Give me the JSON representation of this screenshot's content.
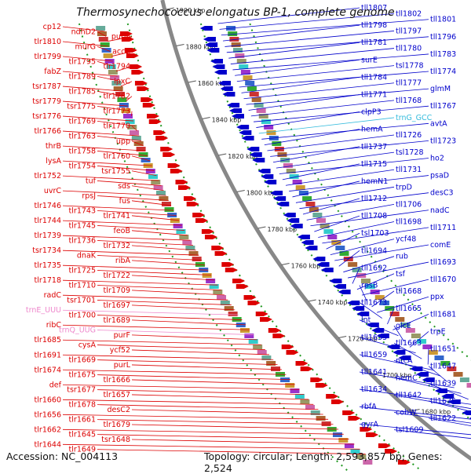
{
  "title": "Thermosynechococcus elongatus BP-1, complete genome",
  "accession": "Accession: NC_004113",
  "topology": "Topology: circular; Length: 2,593,857 bp; Genes: 2,524",
  "colors": {
    "plus_strand": "#dd0000",
    "minus_strand": "#0000cc",
    "rna": "#ee88cc",
    "trna_minus": "#33bbdd",
    "backbone": "#888888",
    "ticks": "#555555",
    "dots": "#229922"
  },
  "tick_labels": [
    "1900 kbp",
    "1880 kbp",
    "1860 kbp",
    "1840 kbp",
    "1820 kbp",
    "1800 kbp",
    "1780 kbp",
    "1760 kbp",
    "1740 kbp",
    "1720 kbp",
    "1700 kbp",
    "1680 kbp"
  ],
  "left_labels": [
    {
      "t": "cp12",
      "c": "red"
    },
    {
      "t": "ndhD2",
      "c": "red"
    },
    {
      "t": "purM",
      "c": "red"
    },
    {
      "t": "tlr1810",
      "c": "red"
    },
    {
      "t": "murG",
      "c": "red"
    },
    {
      "t": "accC",
      "c": "red"
    },
    {
      "t": "tlr1799",
      "c": "red"
    },
    {
      "t": "tlr1795",
      "c": "red"
    },
    {
      "t": "tlr1794",
      "c": "red"
    },
    {
      "t": "fabZ",
      "c": "red"
    },
    {
      "t": "tlr1789",
      "c": "red"
    },
    {
      "t": "lpxC",
      "c": "red"
    },
    {
      "t": "tsr1787",
      "c": "red"
    },
    {
      "t": "tlr1785",
      "c": "red"
    },
    {
      "t": "tlr1782",
      "c": "red"
    },
    {
      "t": "tsr1779",
      "c": "red"
    },
    {
      "t": "tsr1775",
      "c": "red"
    },
    {
      "t": "tlr1773",
      "c": "red"
    },
    {
      "t": "tsr1776",
      "c": "red"
    },
    {
      "t": "tlr1769",
      "c": "red"
    },
    {
      "t": "tlr1770",
      "c": "red"
    },
    {
      "t": "tlr1766",
      "c": "red"
    },
    {
      "t": "tlr1763",
      "c": "red"
    },
    {
      "t": "upp",
      "c": "red"
    },
    {
      "t": "thrB",
      "c": "red"
    },
    {
      "t": "tlr1758",
      "c": "red"
    },
    {
      "t": "tlr1760",
      "c": "red"
    },
    {
      "t": "lysA",
      "c": "red"
    },
    {
      "t": "tlr1754",
      "c": "red"
    },
    {
      "t": "tsr1755",
      "c": "red"
    },
    {
      "t": "tlr1752",
      "c": "red"
    },
    {
      "t": "tuf",
      "c": "red"
    },
    {
      "t": "sds",
      "c": "red"
    },
    {
      "t": "uvrC",
      "c": "red"
    },
    {
      "t": "rpsJ",
      "c": "red"
    },
    {
      "t": "fus",
      "c": "red"
    },
    {
      "t": "tlr1746",
      "c": "red"
    },
    {
      "t": "tlr1743",
      "c": "red"
    },
    {
      "t": "tlr1741",
      "c": "red"
    },
    {
      "t": "tlr1744",
      "c": "red"
    },
    {
      "t": "tlr1745",
      "c": "red"
    },
    {
      "t": "feoB",
      "c": "red"
    },
    {
      "t": "tlr1739",
      "c": "red"
    },
    {
      "t": "tlr1736",
      "c": "red"
    },
    {
      "t": "tlr1732",
      "c": "red"
    },
    {
      "t": "tsr1734",
      "c": "red"
    },
    {
      "t": "dnaK",
      "c": "red"
    },
    {
      "t": "ribA",
      "c": "red"
    },
    {
      "t": "tlr1735",
      "c": "red"
    },
    {
      "t": "tlr1725",
      "c": "red"
    },
    {
      "t": "tlr1722",
      "c": "red"
    },
    {
      "t": "tlr1718",
      "c": "red"
    },
    {
      "t": "tlr1710",
      "c": "red"
    },
    {
      "t": "tlr1709",
      "c": "red"
    },
    {
      "t": "radC",
      "c": "red"
    },
    {
      "t": "tsr1701",
      "c": "red"
    },
    {
      "t": "tlr1697",
      "c": "red"
    },
    {
      "t": "trnE_UUU",
      "c": "pink"
    },
    {
      "t": "tlr1700",
      "c": "red"
    },
    {
      "t": "tlr1689",
      "c": "red"
    },
    {
      "t": "ribC",
      "c": "red"
    },
    {
      "t": "trnQ_UUG",
      "c": "pink"
    },
    {
      "t": "purF",
      "c": "red"
    },
    {
      "t": "tlr1685",
      "c": "red"
    },
    {
      "t": "cysA",
      "c": "red"
    },
    {
      "t": "ycf52",
      "c": "red"
    },
    {
      "t": "tlr1691",
      "c": "red"
    },
    {
      "t": "tlr1669",
      "c": "red"
    },
    {
      "t": "purL",
      "c": "red"
    },
    {
      "t": "tlr1674",
      "c": "red"
    },
    {
      "t": "tlr1675",
      "c": "red"
    },
    {
      "t": "tlr1666",
      "c": "red"
    },
    {
      "t": "def",
      "c": "red"
    },
    {
      "t": "tsr1677",
      "c": "red"
    },
    {
      "t": "tlr1657",
      "c": "red"
    },
    {
      "t": "tlr1660",
      "c": "red"
    },
    {
      "t": "tlr1678",
      "c": "red"
    },
    {
      "t": "desC2",
      "c": "red"
    },
    {
      "t": "tlr1656",
      "c": "red"
    },
    {
      "t": "tlr1661",
      "c": "red"
    },
    {
      "t": "tlr1679",
      "c": "red"
    },
    {
      "t": "tlr1662",
      "c": "red"
    },
    {
      "t": "tlr1645",
      "c": "red"
    },
    {
      "t": "tsr1648",
      "c": "red"
    },
    {
      "t": "tlr1644",
      "c": "red"
    },
    {
      "t": "tlr1649",
      "c": "red"
    }
  ],
  "right_labels": [
    {
      "t": "tll1807",
      "c": "blue"
    },
    {
      "t": "tll1802",
      "c": "blue"
    },
    {
      "t": "tll1801",
      "c": "blue"
    },
    {
      "t": "tll1798",
      "c": "blue"
    },
    {
      "t": "tll1797",
      "c": "blue"
    },
    {
      "t": "tll1796",
      "c": "blue"
    },
    {
      "t": "tll1781",
      "c": "blue"
    },
    {
      "t": "tll1780",
      "c": "blue"
    },
    {
      "t": "tll1783",
      "c": "blue"
    },
    {
      "t": "surE",
      "c": "blue"
    },
    {
      "t": "tsl1778",
      "c": "blue"
    },
    {
      "t": "tll1774",
      "c": "blue"
    },
    {
      "t": "tll1784",
      "c": "blue"
    },
    {
      "t": "tll1777",
      "c": "blue"
    },
    {
      "t": "glmM",
      "c": "blue"
    },
    {
      "t": "tll1771",
      "c": "blue"
    },
    {
      "t": "tll1768",
      "c": "blue"
    },
    {
      "t": "tll1767",
      "c": "blue"
    },
    {
      "t": "clpP3",
      "c": "blue"
    },
    {
      "t": "trnG_GCC",
      "c": "cyan"
    },
    {
      "t": "avtA",
      "c": "blue"
    },
    {
      "t": "hemA",
      "c": "blue"
    },
    {
      "t": "tll1726",
      "c": "blue"
    },
    {
      "t": "tll1723",
      "c": "blue"
    },
    {
      "t": "tll1737",
      "c": "blue"
    },
    {
      "t": "tsl1728",
      "c": "blue"
    },
    {
      "t": "ho2",
      "c": "blue"
    },
    {
      "t": "tll1715",
      "c": "blue"
    },
    {
      "t": "tll1731",
      "c": "blue"
    },
    {
      "t": "psaD",
      "c": "blue"
    },
    {
      "t": "hemN1",
      "c": "blue"
    },
    {
      "t": "trpD",
      "c": "blue"
    },
    {
      "t": "desC3",
      "c": "blue"
    },
    {
      "t": "tll1712",
      "c": "blue"
    },
    {
      "t": "tll1706",
      "c": "blue"
    },
    {
      "t": "nadC",
      "c": "blue"
    },
    {
      "t": "tll1708",
      "c": "blue"
    },
    {
      "t": "tll1698",
      "c": "blue"
    },
    {
      "t": "tll1711",
      "c": "blue"
    },
    {
      "t": "tsl1703",
      "c": "blue"
    },
    {
      "t": "ycf48",
      "c": "blue"
    },
    {
      "t": "comE",
      "c": "blue"
    },
    {
      "t": "tll1694",
      "c": "blue"
    },
    {
      "t": "rub",
      "c": "blue"
    },
    {
      "t": "tll1693",
      "c": "blue"
    },
    {
      "t": "tll1692",
      "c": "blue"
    },
    {
      "t": "tsf",
      "c": "blue"
    },
    {
      "t": "tll1670",
      "c": "blue"
    },
    {
      "t": "rpsB",
      "c": "blue"
    },
    {
      "t": "tll1668",
      "c": "blue"
    },
    {
      "t": "ppx",
      "c": "blue"
    },
    {
      "t": "tll1673",
      "c": "blue"
    },
    {
      "t": "tll1665",
      "c": "blue"
    },
    {
      "t": "tll1681",
      "c": "blue"
    },
    {
      "t": "lnt",
      "c": "blue"
    },
    {
      "t": "glcE",
      "c": "blue"
    },
    {
      "t": "trpE",
      "c": "blue"
    },
    {
      "t": "tll1655",
      "c": "blue"
    },
    {
      "t": "tll1663",
      "c": "blue"
    },
    {
      "t": "tll1651",
      "c": "blue"
    },
    {
      "t": "tll1659",
      "c": "blue"
    },
    {
      "t": "ntcA",
      "c": "blue"
    },
    {
      "t": "tll1647",
      "c": "blue"
    },
    {
      "t": "tll1641",
      "c": "blue"
    },
    {
      "t": "hemC",
      "c": "blue"
    },
    {
      "t": "tll1639",
      "c": "blue"
    },
    {
      "t": "tll1634",
      "c": "blue"
    },
    {
      "t": "tll1642",
      "c": "blue"
    },
    {
      "t": "tll1635",
      "c": "blue"
    },
    {
      "t": "rbfA",
      "c": "blue"
    },
    {
      "t": "cobW",
      "c": "blue"
    },
    {
      "t": "tll1622",
      "c": "blue"
    },
    {
      "t": "gyrA",
      "c": "blue"
    },
    {
      "t": "tsl1609",
      "c": "blue"
    }
  ]
}
